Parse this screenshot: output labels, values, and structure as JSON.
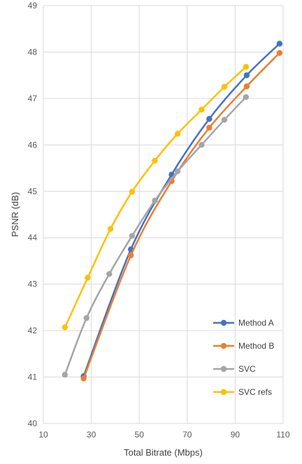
{
  "chart_data": {
    "type": "line",
    "title": "",
    "xlabel": "Total Bitrate (Mbps)",
    "ylabel": "PSNR (dB)",
    "xlim": [
      10,
      110
    ],
    "ylim": [
      40,
      49
    ],
    "xticks": [
      10,
      30,
      50,
      70,
      90,
      110
    ],
    "yticks": [
      40,
      41,
      42,
      43,
      44,
      45,
      46,
      47,
      48,
      49
    ],
    "grid": true,
    "legend_position": "bottom-right",
    "series": [
      {
        "name": "Method A",
        "color": "#4472C4",
        "x": [
          26.8,
          46.5,
          63.5,
          79.2,
          94.8,
          108.5
        ],
        "y": [
          41.02,
          43.75,
          45.36,
          46.56,
          47.5,
          48.18
        ]
      },
      {
        "name": "Method B",
        "color": "#ED7D31",
        "x": [
          26.8,
          46.5,
          63.5,
          79.2,
          94.8,
          108.5
        ],
        "y": [
          40.97,
          43.62,
          45.22,
          46.37,
          47.26,
          47.98
        ]
      },
      {
        "name": "SVC",
        "color": "#A5A5A5",
        "x": [
          19.0,
          28.0,
          37.5,
          47.0,
          56.5,
          66.0,
          76.0,
          85.5,
          94.5
        ],
        "y": [
          41.05,
          42.27,
          43.22,
          44.04,
          44.8,
          45.43,
          46.0,
          46.54,
          47.03
        ]
      },
      {
        "name": "SVC refs",
        "color": "#FFC000",
        "x": [
          19.0,
          28.5,
          38.0,
          47.0,
          56.5,
          66.0,
          76.0,
          85.5,
          94.5
        ],
        "y": [
          42.07,
          43.14,
          44.19,
          44.99,
          45.66,
          46.24,
          46.76,
          47.25,
          47.68
        ]
      }
    ]
  }
}
